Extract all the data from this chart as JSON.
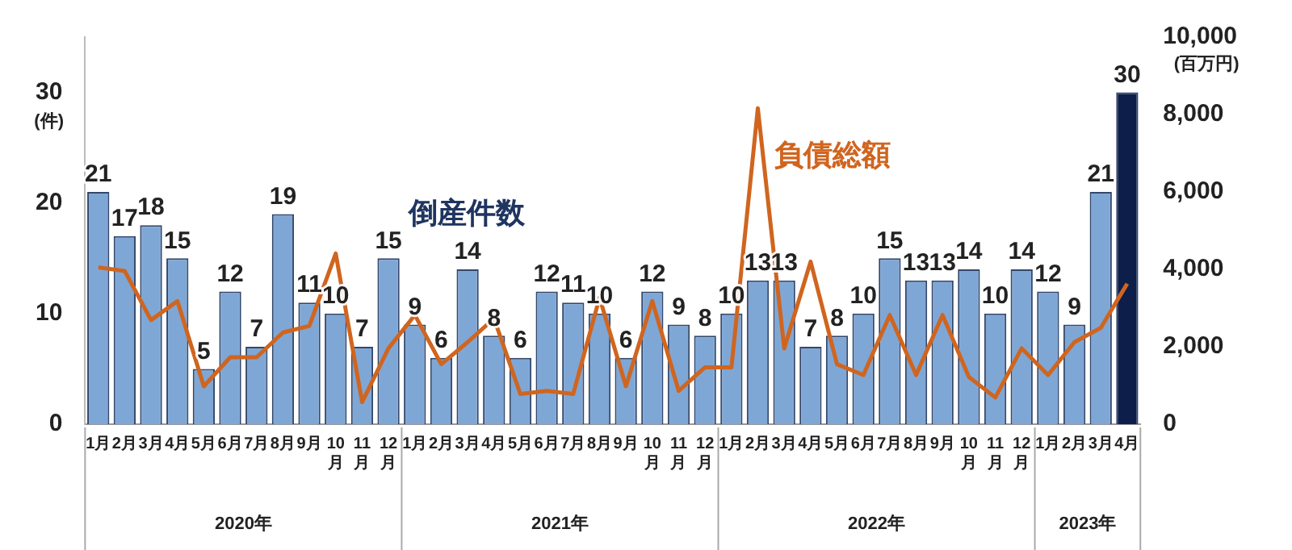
{
  "chart_data": {
    "type": "bar",
    "categories": [
      "1月",
      "2月",
      "3月",
      "4月",
      "5月",
      "6月",
      "7月",
      "8月",
      "9月",
      "10月",
      "11月",
      "12月",
      "1月",
      "2月",
      "3月",
      "4月",
      "5月",
      "6月",
      "7月",
      "8月",
      "9月",
      "10月",
      "11月",
      "12月",
      "1月",
      "2月",
      "3月",
      "4月",
      "5月",
      "6月",
      "7月",
      "8月",
      "9月",
      "10月",
      "11月",
      "12月",
      "1月",
      "2月",
      "3月",
      "4月"
    ],
    "series": [
      {
        "name": "倒産件数",
        "color": "#7fa7d6",
        "colors": [
          "#7fa7d6",
          "#7fa7d6",
          "#7fa7d6",
          "#7fa7d6",
          "#7fa7d6",
          "#7fa7d6",
          "#7fa7d6",
          "#7fa7d6",
          "#7fa7d6",
          "#7fa7d6",
          "#7fa7d6",
          "#7fa7d6",
          "#7fa7d6",
          "#7fa7d6",
          "#7fa7d6",
          "#7fa7d6",
          "#7fa7d6",
          "#7fa7d6",
          "#7fa7d6",
          "#7fa7d6",
          "#7fa7d6",
          "#7fa7d6",
          "#7fa7d6",
          "#7fa7d6",
          "#7fa7d6",
          "#7fa7d6",
          "#7fa7d6",
          "#7fa7d6",
          "#7fa7d6",
          "#7fa7d6",
          "#7fa7d6",
          "#7fa7d6",
          "#7fa7d6",
          "#7fa7d6",
          "#7fa7d6",
          "#7fa7d6",
          "#7fa7d6",
          "#7fa7d6",
          "#7fa7d6",
          "#0e1e4a"
        ],
        "values": [
          21,
          17,
          18,
          15,
          5,
          12,
          7,
          19,
          11,
          10,
          7,
          15,
          9,
          6,
          14,
          8,
          6,
          12,
          11,
          10,
          6,
          12,
          9,
          8,
          10,
          13,
          13,
          7,
          8,
          10,
          15,
          13,
          13,
          14,
          10,
          14,
          12,
          9,
          21,
          30
        ],
        "value_labels": [
          "21",
          "17",
          "18",
          "15",
          "5",
          "12",
          "7",
          "19",
          "11",
          "10",
          "7",
          "15",
          "9",
          "6",
          "14",
          "8",
          "6",
          "12",
          "11",
          "10",
          "6",
          "12",
          "9",
          "8",
          "10",
          "13",
          "13",
          "7",
          "8",
          "10",
          "15",
          "13",
          "13",
          "14",
          "10",
          "14",
          "12",
          "9",
          "21",
          "30"
        ]
      },
      {
        "type": "line",
        "name": "負債総額",
        "axis": "y2",
        "color": "#d0651f",
        "values": [
          4050,
          3960,
          2690,
          3180,
          980,
          1730,
          1730,
          2370,
          2540,
          4410,
          570,
          1960,
          2820,
          1550,
          2120,
          2730,
          780,
          860,
          780,
          3270,
          980,
          3180,
          860,
          1470,
          1470,
          8160,
          1960,
          4200,
          1550,
          1270,
          2820,
          1270,
          2820,
          1220,
          690,
          1960,
          1270,
          2120,
          2490,
          3630
        ]
      }
    ],
    "ylim": [
      0,
      35
    ],
    "yticks": [
      0,
      10,
      20,
      30
    ],
    "ylabel": "(件)",
    "y2lim": [
      0,
      10000
    ],
    "y2ticks": [
      0,
      {
        "value": 2000,
        "label": "2,000"
      },
      {
        "value": 4000,
        "label": "4,000"
      },
      {
        "value": 6000,
        "label": "6,000"
      },
      {
        "value": 8000,
        "label": "8,000"
      },
      {
        "value": 10000,
        "label": "10,000"
      }
    ],
    "y2label": "(百万円)",
    "annotations": [
      "2020年",
      "2021年",
      "2022年",
      "2023年"
    ],
    "grid": false,
    "legend": false,
    "marker": "none",
    "line_style": "solid"
  }
}
